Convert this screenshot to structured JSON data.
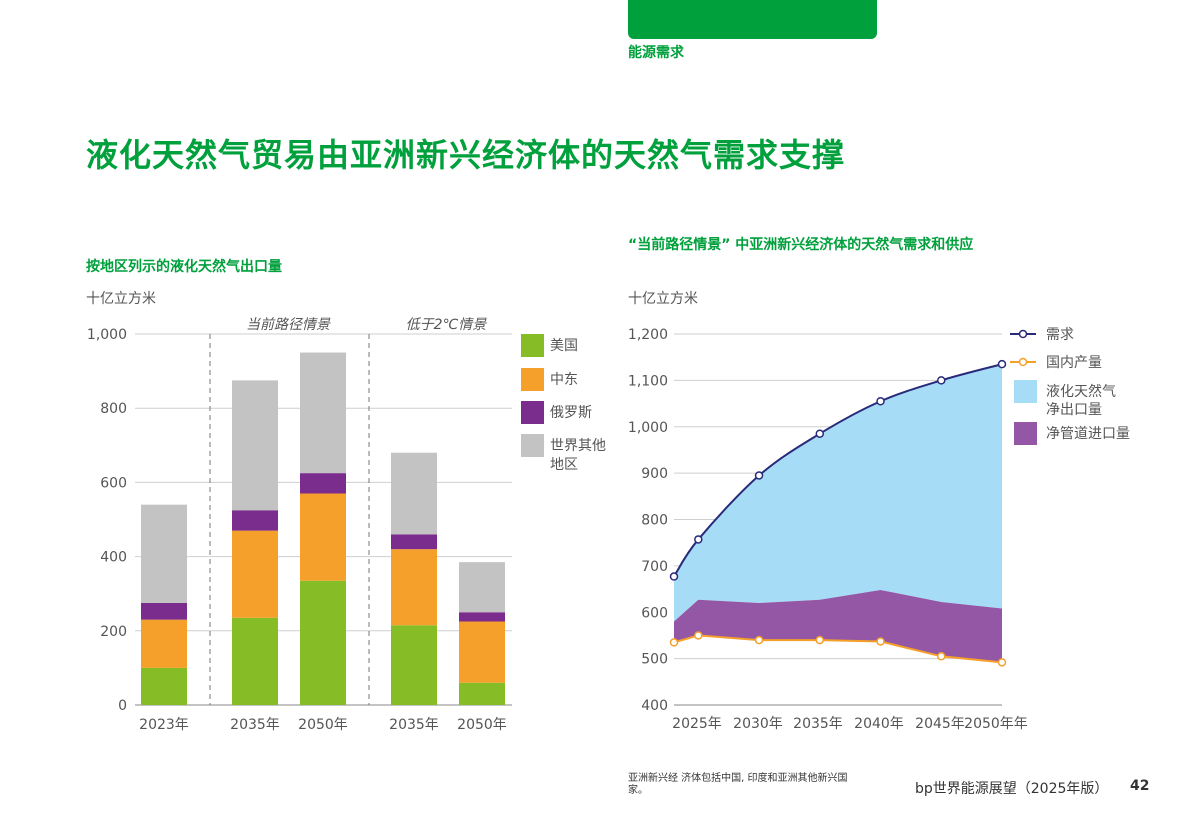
{
  "header": {
    "section_label": "能源需求",
    "page_title": "液化天然气贸易由亚洲新兴经济体的天然气需求支撑",
    "accent_color": "#00a03c"
  },
  "footer": {
    "note": "亚洲新兴经 济体包括中国, 印度和亚洲其他新兴国家。",
    "publication": "bp世界能源展望（2025年版）",
    "page_number": "42"
  },
  "chart_data": [
    {
      "type": "bar",
      "stacked": true,
      "title": "按地区列示的液化天然气出口量",
      "unit": "十亿立方米",
      "ylim": [
        0,
        1000
      ],
      "yticks": [
        0,
        200,
        400,
        600,
        800,
        1000
      ],
      "ytick_labels": [
        "0",
        "200",
        "400",
        "600",
        "800",
        "1,000"
      ],
      "grid": true,
      "legend_position": "right",
      "scenario_labels": [
        "当前路径情景",
        "低于2℃情景"
      ],
      "categories": [
        "2023年",
        "2035年",
        "2050年",
        "2035年",
        "2050年"
      ],
      "series": [
        {
          "name": "美国",
          "color": "#86bc25",
          "values": [
            100,
            235,
            335,
            215,
            60
          ]
        },
        {
          "name": "中东",
          "color": "#f5a02a",
          "values": [
            130,
            235,
            235,
            205,
            165
          ]
        },
        {
          "name": "俄罗斯",
          "color": "#7b2d8e",
          "values": [
            45,
            55,
            55,
            40,
            25
          ]
        },
        {
          "name": "世界其他\n地区",
          "color": "#c3c3c3",
          "values": [
            265,
            350,
            325,
            220,
            135
          ]
        }
      ]
    },
    {
      "type": "area",
      "title": "“当前路径情景” 中亚洲新兴经济体的天然气需求和供应",
      "unit": "十亿立方米",
      "ylim": [
        400,
        1200
      ],
      "yticks": [
        400,
        500,
        600,
        700,
        800,
        900,
        1000,
        1100,
        1200
      ],
      "ytick_labels": [
        "400",
        "500",
        "600",
        "700",
        "800",
        "900",
        "1,000",
        "1,100",
        "1,200"
      ],
      "x_labels": [
        "2025年",
        "2030年",
        "2035年",
        "2040年",
        "2045年",
        "2050年年"
      ],
      "grid": true,
      "legend_position": "right",
      "x_range": [
        2023,
        2050
      ],
      "series": [
        {
          "name": "需求",
          "style": "line",
          "color": "#2a2a7a",
          "x": [
            2023,
            2025,
            2030,
            2035,
            2040,
            2045,
            2050
          ],
          "values": [
            677,
            757,
            895,
            985,
            1055,
            1100,
            1135
          ]
        },
        {
          "name": "国内产量",
          "style": "line",
          "color": "#f5a02a",
          "x": [
            2023,
            2025,
            2030,
            2035,
            2040,
            2045,
            2050
          ],
          "values": [
            535,
            550,
            540,
            540,
            537,
            505,
            492
          ]
        },
        {
          "name": "液化天然气\n净出口量",
          "style": "area",
          "color": "#a6dcf5",
          "x": [
            2023,
            2025,
            2030,
            2035,
            2040,
            2045,
            2050
          ],
          "values": [
            677,
            757,
            895,
            985,
            1055,
            1100,
            1135
          ]
        },
        {
          "name": "净管道进口量",
          "style": "area",
          "color": "#9457a5",
          "x": [
            2023,
            2025,
            2030,
            2035,
            2040,
            2045,
            2050
          ],
          "values": [
            580,
            627,
            620,
            627,
            648,
            622,
            608
          ]
        }
      ]
    }
  ]
}
